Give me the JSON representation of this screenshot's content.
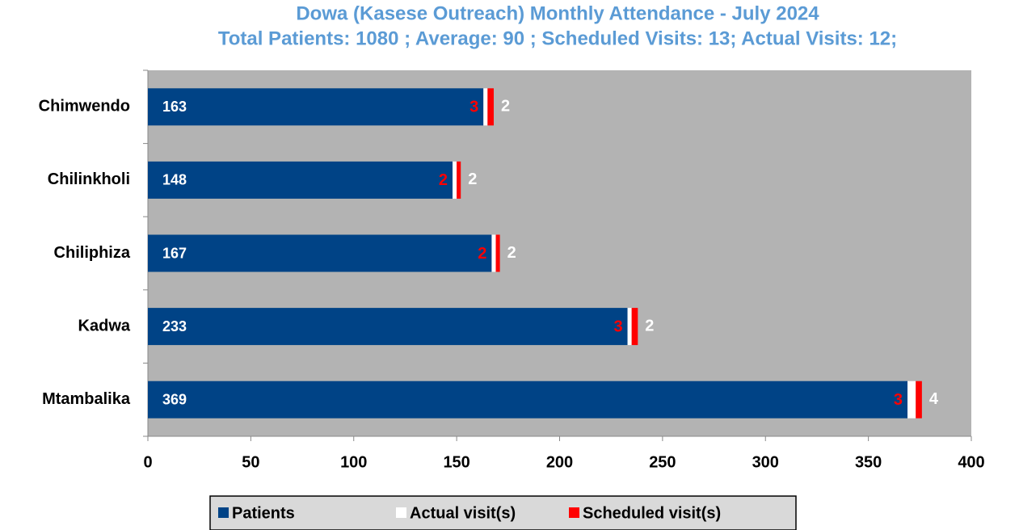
{
  "chart_data": {
    "type": "stacked_barh",
    "title": "Dowa (Kasese Outreach)  Monthly Attendance  - July 2024",
    "subtitle": "Total Patients: 1080 ; Average: 90 ; Scheduled Visits: 13; Actual Visits: 12;",
    "categories": [
      "Chimwendo",
      "Chilinkholi",
      "Chiliphiza",
      "Kadwa",
      "Mtambalika"
    ],
    "series": [
      {
        "name": "Patients",
        "color": "#004386",
        "label_color": "#ffffff",
        "values": [
          163,
          148,
          167,
          233,
          369
        ]
      },
      {
        "name": "Actual visit(s)",
        "color": "#ffffff",
        "label_color": "#ffffff",
        "values": [
          2,
          2,
          2,
          2,
          4
        ]
      },
      {
        "name": "Scheduled visit(s)",
        "color": "#ff0000",
        "label_color": "#ff0000",
        "values": [
          3,
          2,
          2,
          3,
          3
        ]
      }
    ],
    "xlim": [
      0,
      400
    ],
    "xticks": [
      0,
      50,
      100,
      150,
      200,
      250,
      300,
      350,
      400
    ],
    "plot_background": "#b3b3b3",
    "legend": "bottom"
  }
}
